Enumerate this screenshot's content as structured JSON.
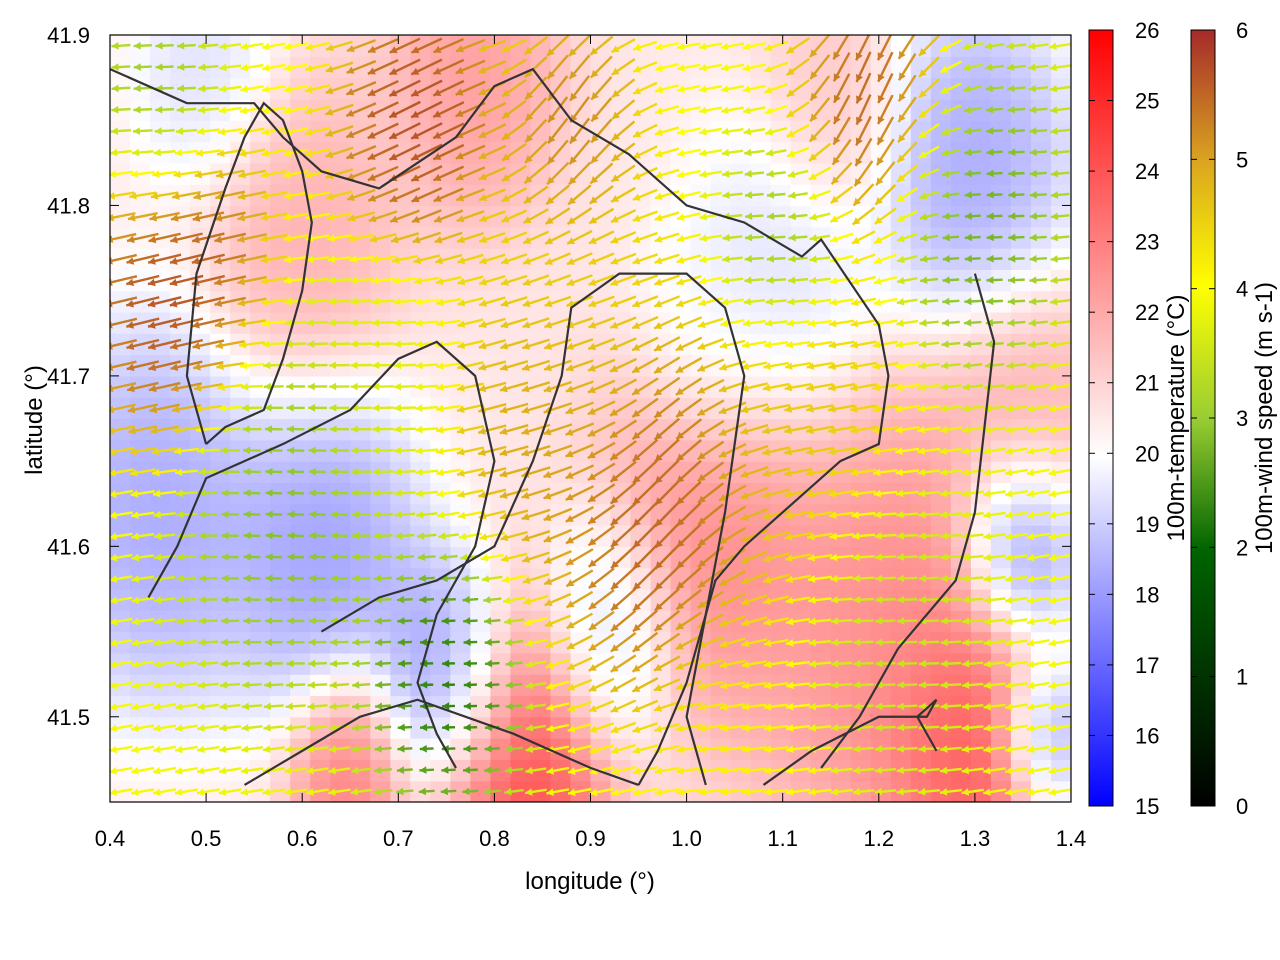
{
  "chart_data": {
    "type": "heatmap",
    "title": "",
    "xlabel": "longitude (°)",
    "ylabel": "latitude (°)",
    "xlim": [
      0.4,
      1.4
    ],
    "ylim": [
      41.45,
      41.9
    ],
    "xticks": [
      "0.4",
      "0.5",
      "0.6",
      "0.7",
      "0.8",
      "0.9",
      "1.0",
      "1.1",
      "1.2",
      "1.3",
      "1.4"
    ],
    "yticks": [
      "41.5",
      "41.6",
      "41.7",
      "41.8",
      "41.9"
    ],
    "grid": false,
    "temperature_colorbar": {
      "label": "100m-temperature (°C)",
      "range": [
        15,
        26
      ],
      "ticks": [
        "15",
        "16",
        "17",
        "18",
        "19",
        "20",
        "21",
        "22",
        "23",
        "24",
        "25",
        "26"
      ],
      "colors": [
        "#0000ff",
        "#ffffff",
        "#ff0000"
      ]
    },
    "windspeed_colorbar": {
      "label": "100m-wind speed (m s-1)",
      "range": [
        0,
        6
      ],
      "ticks": [
        "0",
        "1",
        "2",
        "3",
        "4",
        "5",
        "6"
      ],
      "colors": [
        "#000000",
        "#006400",
        "#9acd32",
        "#ffff00",
        "#daa520",
        "#a52a2a"
      ]
    },
    "temperature_field_centers": [
      {
        "lon": 0.45,
        "lat": 41.62,
        "temp": 18.0,
        "spread": 0.09
      },
      {
        "lon": 0.62,
        "lat": 41.6,
        "temp": 17.8,
        "spread": 0.08
      },
      {
        "lon": 0.75,
        "lat": 41.52,
        "temp": 17.0,
        "spread": 0.06
      },
      {
        "lon": 0.92,
        "lat": 41.55,
        "temp": 19.0,
        "spread": 0.06
      },
      {
        "lon": 0.82,
        "lat": 41.47,
        "temp": 25.5,
        "spread": 0.08
      },
      {
        "lon": 0.65,
        "lat": 41.47,
        "temp": 24.0,
        "spread": 0.05
      },
      {
        "lon": 1.02,
        "lat": 41.61,
        "temp": 23.5,
        "spread": 0.09
      },
      {
        "lon": 1.22,
        "lat": 41.55,
        "temp": 23.5,
        "spread": 0.12
      },
      {
        "lon": 1.3,
        "lat": 41.48,
        "temp": 25.0,
        "spread": 0.07
      },
      {
        "lon": 1.35,
        "lat": 41.6,
        "temp": 16.5,
        "spread": 0.05
      },
      {
        "lon": 1.37,
        "lat": 41.49,
        "temp": 17.0,
        "spread": 0.04
      },
      {
        "lon": 1.3,
        "lat": 41.82,
        "temp": 18.0,
        "spread": 0.08
      },
      {
        "lon": 1.1,
        "lat": 41.76,
        "temp": 19.5,
        "spread": 0.08
      },
      {
        "lon": 1.02,
        "lat": 41.72,
        "temp": 20.0,
        "spread": 0.06
      },
      {
        "lon": 0.5,
        "lat": 41.88,
        "temp": 19.5,
        "spread": 0.06
      },
      {
        "lon": 0.78,
        "lat": 41.88,
        "temp": 23.0,
        "spread": 0.07
      },
      {
        "lon": 0.6,
        "lat": 41.78,
        "temp": 22.5,
        "spread": 0.08
      },
      {
        "lon": 1.35,
        "lat": 41.68,
        "temp": 22.5,
        "spread": 0.07
      },
      {
        "lon": 1.15,
        "lat": 41.86,
        "temp": 22.0,
        "spread": 0.06
      }
    ],
    "temperature_background": 21,
    "wind_field_centers": [
      {
        "lon": 0.47,
        "lat": 41.75,
        "speed": 6.0,
        "dir": 195,
        "spread": 0.07
      },
      {
        "lon": 0.72,
        "lat": 41.85,
        "speed": 6.0,
        "dir": 210,
        "spread": 0.06
      },
      {
        "lon": 0.88,
        "lat": 41.84,
        "speed": 5.5,
        "dir": 250,
        "spread": 0.05
      },
      {
        "lon": 1.2,
        "lat": 41.86,
        "speed": 5.8,
        "dir": 260,
        "spread": 0.06
      },
      {
        "lon": 0.97,
        "lat": 41.62,
        "speed": 5.8,
        "dir": 235,
        "spread": 0.08
      },
      {
        "lon": 0.85,
        "lat": 41.67,
        "speed": 5.0,
        "dir": 195,
        "spread": 0.07
      },
      {
        "lon": 0.88,
        "lat": 41.75,
        "speed": 4.2,
        "dir": 200,
        "spread": 0.08
      },
      {
        "lon": 1.12,
        "lat": 41.68,
        "speed": 4.5,
        "dir": 190,
        "spread": 0.08
      },
      {
        "lon": 0.58,
        "lat": 41.62,
        "speed": 2.0,
        "dir": 175,
        "spread": 0.08
      },
      {
        "lon": 0.75,
        "lat": 41.52,
        "speed": 1.2,
        "dir": 180,
        "spread": 0.06
      },
      {
        "lon": 1.1,
        "lat": 41.77,
        "speed": 2.0,
        "dir": 180,
        "spread": 0.05
      },
      {
        "lon": 1.3,
        "lat": 41.8,
        "speed": 1.8,
        "dir": 180,
        "spread": 0.07
      },
      {
        "lon": 1.22,
        "lat": 41.55,
        "speed": 2.8,
        "dir": 180,
        "spread": 0.07
      },
      {
        "lon": 1.05,
        "lat": 41.49,
        "speed": 3.8,
        "dir": 185,
        "spread": 0.06
      },
      {
        "lon": 0.45,
        "lat": 41.86,
        "speed": 2.2,
        "dir": 180,
        "spread": 0.05
      },
      {
        "lon": 0.68,
        "lat": 41.7,
        "speed": 3.2,
        "dir": 180,
        "spread": 0.06
      }
    ],
    "wind_background": {
      "speed": 3.5,
      "dir": 190
    },
    "contours": [
      [
        [
          0.5,
          41.66
        ],
        [
          0.48,
          41.7
        ],
        [
          0.49,
          41.76
        ],
        [
          0.52,
          41.81
        ],
        [
          0.54,
          41.84
        ],
        [
          0.56,
          41.86
        ],
        [
          0.58,
          41.85
        ],
        [
          0.6,
          41.82
        ],
        [
          0.61,
          41.79
        ],
        [
          0.6,
          41.75
        ],
        [
          0.58,
          41.71
        ],
        [
          0.56,
          41.68
        ],
        [
          0.52,
          41.67
        ],
        [
          0.5,
          41.66
        ]
      ],
      [
        [
          0.4,
          41.88
        ],
        [
          0.48,
          41.86
        ],
        [
          0.55,
          41.86
        ],
        [
          0.58,
          41.84
        ],
        [
          0.62,
          41.82
        ],
        [
          0.68,
          41.81
        ],
        [
          0.76,
          41.84
        ],
        [
          0.8,
          41.87
        ],
        [
          0.84,
          41.88
        ],
        [
          0.88,
          41.85
        ],
        [
          0.94,
          41.83
        ],
        [
          1.0,
          41.8
        ],
        [
          1.06,
          41.79
        ],
        [
          1.12,
          41.77
        ],
        [
          1.14,
          41.78
        ],
        [
          1.2,
          41.73
        ],
        [
          1.21,
          41.7
        ],
        [
          1.2,
          41.66
        ],
        [
          1.16,
          41.65
        ],
        [
          1.12,
          41.63
        ],
        [
          1.06,
          41.6
        ],
        [
          1.03,
          41.58
        ],
        [
          1.0,
          41.52
        ],
        [
          0.97,
          41.48
        ],
        [
          0.95,
          41.46
        ]
      ],
      [
        [
          0.62,
          41.55
        ],
        [
          0.68,
          41.57
        ],
        [
          0.74,
          41.58
        ],
        [
          0.8,
          41.6
        ],
        [
          0.84,
          41.65
        ],
        [
          0.87,
          41.7
        ],
        [
          0.88,
          41.74
        ],
        [
          0.93,
          41.76
        ],
        [
          1.0,
          41.76
        ],
        [
          1.04,
          41.74
        ],
        [
          1.06,
          41.7
        ],
        [
          1.05,
          41.66
        ],
        [
          1.04,
          41.62
        ],
        [
          1.02,
          41.56
        ],
        [
          1.0,
          41.5
        ],
        [
          1.02,
          41.46
        ]
      ],
      [
        [
          0.44,
          41.57
        ],
        [
          0.47,
          41.6
        ],
        [
          0.5,
          41.64
        ],
        [
          0.58,
          41.66
        ],
        [
          0.65,
          41.68
        ],
        [
          0.7,
          41.71
        ],
        [
          0.74,
          41.72
        ],
        [
          0.78,
          41.7
        ],
        [
          0.8,
          41.65
        ],
        [
          0.78,
          41.6
        ],
        [
          0.74,
          41.56
        ],
        [
          0.72,
          41.52
        ],
        [
          0.74,
          41.49
        ],
        [
          0.76,
          41.47
        ]
      ],
      [
        [
          1.3,
          41.76
        ],
        [
          1.32,
          41.72
        ],
        [
          1.31,
          41.67
        ],
        [
          1.3,
          41.62
        ],
        [
          1.28,
          41.58
        ],
        [
          1.22,
          41.54
        ],
        [
          1.18,
          41.5
        ],
        [
          1.14,
          41.47
        ]
      ],
      [
        [
          1.08,
          41.46
        ],
        [
          1.13,
          41.48
        ],
        [
          1.2,
          41.5
        ],
        [
          1.25,
          41.5
        ],
        [
          1.26,
          41.51
        ],
        [
          1.24,
          41.5
        ],
        [
          1.26,
          41.48
        ]
      ],
      [
        [
          0.54,
          41.46
        ],
        [
          0.6,
          41.48
        ],
        [
          0.66,
          41.5
        ],
        [
          0.72,
          41.51
        ],
        [
          0.82,
          41.49
        ],
        [
          0.9,
          41.47
        ],
        [
          0.95,
          41.46
        ]
      ]
    ]
  }
}
